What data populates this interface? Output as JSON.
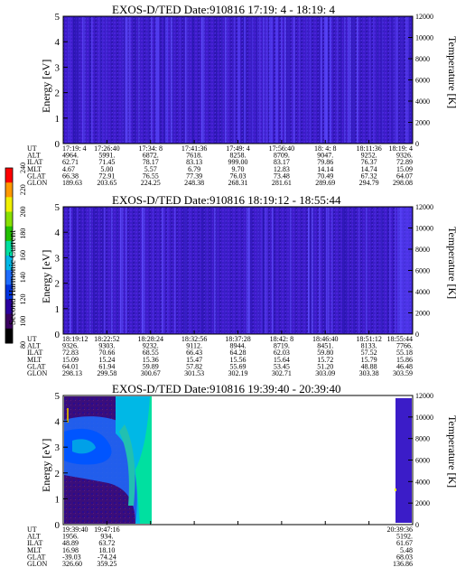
{
  "colorbar": {
    "label": "Second Harmonic Current",
    "ticks": [
      "80",
      "100",
      "120",
      "140",
      "160",
      "180",
      "200",
      "220",
      "240"
    ],
    "colors": [
      "#000000",
      "#3a0060",
      "#2b00a0",
      "#0033e0",
      "#1e6cff",
      "#00b8e6",
      "#00e0a0",
      "#22c000",
      "#88e000",
      "#f0f000",
      "#ff9900",
      "#ff0000"
    ]
  },
  "panels": [
    {
      "title": "EXOS-D/TED   Date:910816  17:19: 4 - 18:19: 4",
      "ylabel": "Energy [eV]",
      "y2label": "Temperature [K]",
      "yticks": [
        "0",
        "1",
        "2",
        "3",
        "4",
        "5"
      ],
      "y2ticks": [
        "0",
        "2000",
        "4000",
        "6000",
        "8000",
        "10000",
        "12000"
      ],
      "ephem_labels": [
        "UT",
        "ALT",
        "ILAT",
        "MLT",
        "GLAT",
        "GLON"
      ],
      "ephem": [
        [
          "17:19: 4",
          "4964.",
          "62.71",
          "4.67",
          "66.38",
          "189.63"
        ],
        [
          "17:26:40",
          "5991.",
          "71.45",
          "5.00",
          "72.91",
          "203.65"
        ],
        [
          "17:34: 8",
          "6872.",
          "78.17",
          "5.57",
          "76.55",
          "224.25"
        ],
        [
          "17:41:36",
          "7618.",
          "83.13",
          "6.79",
          "77.39",
          "248.38"
        ],
        [
          "17:49: 4",
          "8258.",
          "999.00",
          "9.70",
          "76.03",
          "268.31"
        ],
        [
          "17:56:40",
          "8709.",
          "83.17",
          "12.83",
          "73.48",
          "281.61"
        ],
        [
          "18: 4: 8",
          "9047.",
          "79.86",
          "14.14",
          "70.49",
          "289.69"
        ],
        [
          "18:11:36",
          "9252.",
          "76.37",
          "14.74",
          "67.32",
          "294.79"
        ],
        [
          "18:19: 4",
          "9326.",
          "72.89",
          "15.09",
          "64.07",
          "298.08"
        ]
      ]
    },
    {
      "title": "EXOS-D/TED   Date:910816  18:19:12 - 18:55:44",
      "ylabel": "Energy [eV]",
      "y2label": "Temperature [K]",
      "yticks": [
        "0",
        "1",
        "2",
        "3",
        "4",
        "5"
      ],
      "y2ticks": [
        "0",
        "2000",
        "4000",
        "6000",
        "8000",
        "10000",
        "12000"
      ],
      "ephem_labels": [
        "UT",
        "ALT",
        "ILAT",
        "MLT",
        "GLAT",
        "GLON"
      ],
      "ephem": [
        [
          "18:19:12",
          "9326.",
          "72.83",
          "15.09",
          "64.01",
          "298.13"
        ],
        [
          "18:22:52",
          "9303.",
          "70.66",
          "15.24",
          "61.94",
          "299.58"
        ],
        [
          "18:28:24",
          "9232.",
          "68.55",
          "15.36",
          "59.89",
          "300.67"
        ],
        [
          "18:32:56",
          "9112.",
          "66.43",
          "15.47",
          "57.82",
          "301.53"
        ],
        [
          "18:37:28",
          "8944.",
          "64.28",
          "15.56",
          "55.69",
          "302.19"
        ],
        [
          "18:42: 8",
          "8719.",
          "62.03",
          "15.64",
          "53.45",
          "302.71"
        ],
        [
          "18:46:40",
          "8451.",
          "59.80",
          "15.72",
          "51.20",
          "303.09"
        ],
        [
          "18:51:12",
          "8133.",
          "57.52",
          "15.79",
          "48.88",
          "303.38"
        ],
        [
          "18:55:44",
          "7766.",
          "55.18",
          "15.86",
          "46.48",
          "303.59"
        ]
      ]
    },
    {
      "title": "EXOS-D/TED   Date:910816  19:39:40 - 20:39:40",
      "ylabel": "Energy [eV]",
      "y2label": "Temperature [K]",
      "yticks": [
        "0",
        "1",
        "2",
        "3",
        "4",
        "5"
      ],
      "y2ticks": [
        "0",
        "2000",
        "4000",
        "6000",
        "8000",
        "10000",
        "12000"
      ],
      "ephem_labels": [
        "UT",
        "ALT",
        "ILAT",
        "MLT",
        "GLAT",
        "GLON"
      ],
      "ephem": [
        [
          "19:39:40",
          "1956.",
          "48.89",
          "16.98",
          "-39.03",
          "326.60"
        ],
        [
          "19:47:16",
          "934.",
          "63.72",
          "18.10",
          "-74.24",
          "359.25"
        ],
        [
          "",
          "",
          "",
          "",
          "",
          ""
        ],
        [
          "",
          "",
          "",
          "",
          "",
          ""
        ],
        [
          "",
          "",
          "",
          "",
          "",
          ""
        ],
        [
          "",
          "",
          "",
          "",
          "",
          ""
        ],
        [
          "",
          "",
          "",
          "",
          "",
          ""
        ],
        [
          "",
          "",
          "",
          "",
          "",
          ""
        ],
        [
          "20:39:36",
          "5192.",
          "61.67",
          "5.48",
          "68.03",
          "136.86"
        ]
      ]
    }
  ],
  "chart_data": [
    {
      "type": "heatmap",
      "title": "EXOS-D/TED   Date:910816  17:19: 4 - 18:19: 4",
      "ylabel": "Energy [eV]",
      "y2label": "Temperature [K]",
      "ylim": [
        0,
        5
      ],
      "y2lim": [
        0,
        12000
      ],
      "x_start": "17:19: 4",
      "x_end": "18:19: 4",
      "colorbar_range": [
        80,
        240
      ]
    },
    {
      "type": "heatmap",
      "title": "EXOS-D/TED   Date:910816  18:19:12 - 18:55:44",
      "ylabel": "Energy [eV]",
      "y2label": "Temperature [K]",
      "ylim": [
        0,
        5
      ],
      "y2lim": [
        0,
        12000
      ],
      "x_start": "18:19:12",
      "x_end": "18:55:44",
      "colorbar_range": [
        80,
        240
      ]
    },
    {
      "type": "heatmap",
      "title": "EXOS-D/TED   Date:910816  19:39:40 - 20:39:40",
      "ylabel": "Energy [eV]",
      "y2label": "Temperature [K]",
      "ylim": [
        0,
        5
      ],
      "y2lim": [
        0,
        12000
      ],
      "x_start": "19:39:40",
      "x_end": "20:39:40",
      "colorbar_range": [
        80,
        240
      ]
    }
  ]
}
